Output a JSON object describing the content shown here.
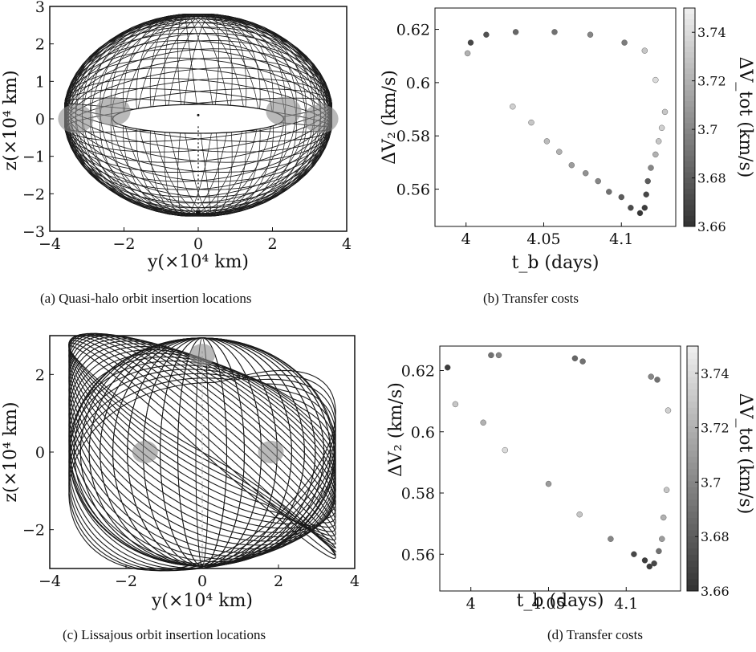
{
  "figure": {
    "panels": [
      {
        "caption": "(a)  Quasi-halo orbit insertion locations",
        "xlabel": "y(×10⁴ km)",
        "ylabel": "z(×10⁴ km)"
      },
      {
        "caption": "(b)  Transfer costs",
        "xlabel": "t_b (days)",
        "ylabel": "ΔV₂ (km/s)",
        "colorbar_label": "ΔV_tot (km/s)"
      },
      {
        "caption": "(c)  Lissajous orbit insertion locations",
        "xlabel": "y(×10⁴ km)",
        "ylabel": "z(×10⁴ km)"
      },
      {
        "caption": "(d)  Transfer costs",
        "xlabel": "t_b (days)",
        "ylabel": "ΔV₂ (km/s)",
        "colorbar_label": "ΔV_tot (km/s)"
      }
    ]
  },
  "chart_data": [
    {
      "type": "line",
      "panel": "a",
      "xlabel": "y(×10⁴ km)",
      "ylabel": "z(×10⁴ km)",
      "xlim": [
        -4,
        4
      ],
      "ylim": [
        -3,
        3
      ],
      "xticks": [
        -4,
        -2,
        0,
        2,
        4
      ],
      "yticks": [
        -3,
        -2,
        -1,
        0,
        1,
        2,
        3
      ],
      "orbit_envelope": {
        "y_extent": [
          -3.6,
          3.6
        ],
        "z_extent": [
          -2.6,
          2.8
        ]
      },
      "central_hole": {
        "y_extent": [
          -2.3,
          2.3
        ],
        "z_extent": [
          -0.3,
          0.3
        ]
      },
      "insertion_regions": [
        {
          "y": -2.3,
          "z": 0.2
        },
        {
          "y": 2.3,
          "z": 0.2
        },
        {
          "y": -3.3,
          "z": 0.0
        },
        {
          "y": 3.3,
          "z": 0.0
        }
      ],
      "grid": false
    },
    {
      "type": "scatter",
      "panel": "b",
      "xlabel": "t_b (days)",
      "ylabel": "ΔV₂ (km/s)",
      "xlim": [
        3.98,
        4.135
      ],
      "ylim": [
        0.546,
        0.628
      ],
      "xticks": [
        4,
        4.05,
        4.1
      ],
      "xtick_labels": [
        "4",
        "4.05",
        "4.1"
      ],
      "yticks": [
        0.56,
        0.58,
        0.6,
        0.62
      ],
      "yticklabels": [
        "0.56",
        "0.58",
        "0.6",
        "0.62"
      ],
      "colorbar": {
        "label": "ΔV_tot (km/s)",
        "range": [
          3.66,
          3.75
        ],
        "ticks": [
          3.66,
          3.68,
          3.7,
          3.72,
          3.74
        ],
        "ticklabels": [
          "3.66",
          "3.68",
          "3.7",
          "3.72",
          "3.74"
        ]
      },
      "points": [
        {
          "x": 4.001,
          "y": 0.611,
          "c": 3.72
        },
        {
          "x": 4.003,
          "y": 0.615,
          "c": 3.67
        },
        {
          "x": 4.013,
          "y": 0.618,
          "c": 3.675
        },
        {
          "x": 4.032,
          "y": 0.619,
          "c": 3.685
        },
        {
          "x": 4.057,
          "y": 0.619,
          "c": 3.69
        },
        {
          "x": 4.08,
          "y": 0.618,
          "c": 3.7
        },
        {
          "x": 4.102,
          "y": 0.615,
          "c": 3.695
        },
        {
          "x": 4.115,
          "y": 0.612,
          "c": 3.73
        },
        {
          "x": 4.122,
          "y": 0.601,
          "c": 3.74
        },
        {
          "x": 4.128,
          "y": 0.589,
          "c": 3.73
        },
        {
          "x": 4.126,
          "y": 0.583,
          "c": 3.735
        },
        {
          "x": 4.124,
          "y": 0.578,
          "c": 3.73
        },
        {
          "x": 4.122,
          "y": 0.573,
          "c": 3.72
        },
        {
          "x": 4.119,
          "y": 0.568,
          "c": 3.7
        },
        {
          "x": 4.117,
          "y": 0.563,
          "c": 3.68
        },
        {
          "x": 4.116,
          "y": 0.558,
          "c": 3.67
        },
        {
          "x": 4.115,
          "y": 0.553,
          "c": 3.665
        },
        {
          "x": 4.112,
          "y": 0.551,
          "c": 3.662
        },
        {
          "x": 4.106,
          "y": 0.553,
          "c": 3.672
        },
        {
          "x": 4.1,
          "y": 0.557,
          "c": 3.68
        },
        {
          "x": 4.092,
          "y": 0.559,
          "c": 3.69
        },
        {
          "x": 4.085,
          "y": 0.563,
          "c": 3.7
        },
        {
          "x": 4.077,
          "y": 0.566,
          "c": 3.705
        },
        {
          "x": 4.068,
          "y": 0.569,
          "c": 3.71
        },
        {
          "x": 4.06,
          "y": 0.574,
          "c": 3.72
        },
        {
          "x": 4.052,
          "y": 0.578,
          "c": 3.725
        },
        {
          "x": 4.042,
          "y": 0.585,
          "c": 3.73
        },
        {
          "x": 4.03,
          "y": 0.591,
          "c": 3.735
        }
      ]
    },
    {
      "type": "line",
      "panel": "c",
      "xlabel": "y(×10⁴ km)",
      "ylabel": "z(×10⁴ km)",
      "xlim": [
        -4,
        4
      ],
      "ylim": [
        -3,
        3
      ],
      "xticks": [
        -4,
        -2,
        0,
        2,
        4
      ],
      "yticks": [
        -2,
        0,
        2
      ],
      "orbit_envelope": {
        "y_extent": [
          -3.5,
          3.5
        ],
        "z_extent": [
          -3.0,
          3.0
        ]
      },
      "insertion_regions": [
        {
          "y": -1.5,
          "z": 0.0
        },
        {
          "y": 0.0,
          "z": 2.5
        },
        {
          "y": 1.8,
          "z": 0.0
        }
      ],
      "grid": false
    },
    {
      "type": "scatter",
      "panel": "d",
      "xlabel": "t_b (days)",
      "ylabel": "ΔV₂ (km/s)",
      "xlim": [
        3.98,
        4.135
      ],
      "ylim": [
        0.548,
        0.628
      ],
      "xticks": [
        4,
        4.05,
        4.1
      ],
      "xtick_labels": [
        "4",
        "4.05",
        "4.1"
      ],
      "yticks": [
        0.56,
        0.58,
        0.6,
        0.62
      ],
      "yticklabels": [
        "0.56",
        "0.58",
        "0.6",
        "0.62"
      ],
      "colorbar": {
        "label": "ΔV_tot (km/s)",
        "range": [
          3.66,
          3.75
        ],
        "ticks": [
          3.66,
          3.68,
          3.7,
          3.72,
          3.74
        ],
        "ticklabels": [
          "3.66",
          "3.68",
          "3.7",
          "3.72",
          "3.74"
        ]
      },
      "points": [
        {
          "x": 3.985,
          "y": 0.621,
          "c": 3.665
        },
        {
          "x": 3.99,
          "y": 0.609,
          "c": 3.73
        },
        {
          "x": 4.008,
          "y": 0.603,
          "c": 3.72
        },
        {
          "x": 4.013,
          "y": 0.625,
          "c": 3.69
        },
        {
          "x": 4.018,
          "y": 0.625,
          "c": 3.7
        },
        {
          "x": 4.022,
          "y": 0.594,
          "c": 3.74
        },
        {
          "x": 4.067,
          "y": 0.624,
          "c": 3.685
        },
        {
          "x": 4.072,
          "y": 0.623,
          "c": 3.69
        },
        {
          "x": 4.05,
          "y": 0.583,
          "c": 3.71
        },
        {
          "x": 4.07,
          "y": 0.573,
          "c": 3.73
        },
        {
          "x": 4.09,
          "y": 0.565,
          "c": 3.7
        },
        {
          "x": 4.105,
          "y": 0.56,
          "c": 3.67
        },
        {
          "x": 4.112,
          "y": 0.558,
          "c": 3.665
        },
        {
          "x": 4.115,
          "y": 0.556,
          "c": 3.665
        },
        {
          "x": 4.118,
          "y": 0.557,
          "c": 3.67
        },
        {
          "x": 4.121,
          "y": 0.561,
          "c": 3.69
        },
        {
          "x": 4.123,
          "y": 0.565,
          "c": 3.71
        },
        {
          "x": 4.124,
          "y": 0.572,
          "c": 3.72
        },
        {
          "x": 4.126,
          "y": 0.581,
          "c": 3.73
        },
        {
          "x": 4.127,
          "y": 0.607,
          "c": 3.735
        },
        {
          "x": 4.12,
          "y": 0.617,
          "c": 3.69
        },
        {
          "x": 4.116,
          "y": 0.618,
          "c": 3.7
        }
      ]
    }
  ]
}
